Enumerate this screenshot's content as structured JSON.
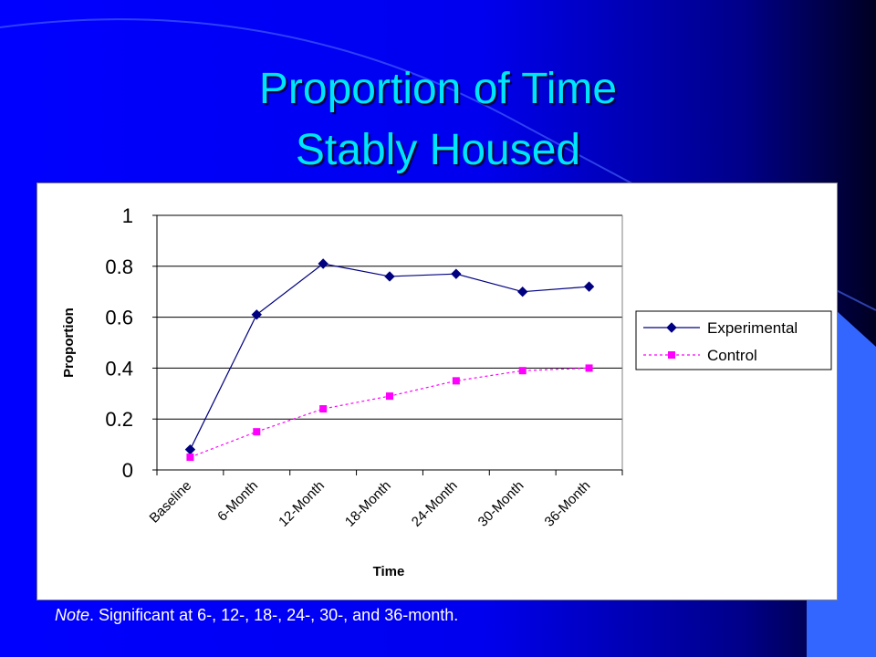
{
  "slide": {
    "title_line_1": "Proportion of Time",
    "title_line_2": "Stably Housed",
    "note_label": "Note",
    "note_text": ". Significant at 6-, 12-, 18-, 24-, 30-, and 36-month.",
    "colors": {
      "background": "#0000ff",
      "title": "#00e5ff",
      "accent_shape": "#3366ff"
    }
  },
  "chart_data": {
    "type": "line",
    "title": "",
    "xlabel": "Time",
    "ylabel": "Proportion",
    "categories": [
      "Baseline",
      "6-Month",
      "12-Month",
      "18-Month",
      "24-Month",
      "30-Month",
      "36-Month"
    ],
    "ylim": [
      0,
      1
    ],
    "yticks": [
      "0",
      "0.2",
      "0.4",
      "0.6",
      "0.8",
      "1"
    ],
    "grid": true,
    "legend_position": "right",
    "series": [
      {
        "name": "Experimental",
        "values": [
          0.08,
          0.61,
          0.81,
          0.76,
          0.77,
          0.7,
          0.72
        ],
        "color": "#000080",
        "marker": "diamond",
        "line_style": "solid"
      },
      {
        "name": "Control",
        "values": [
          0.05,
          0.15,
          0.24,
          0.29,
          0.35,
          0.39,
          0.4
        ],
        "color": "#ff00ff",
        "marker": "square",
        "line_style": "dashed"
      }
    ]
  }
}
